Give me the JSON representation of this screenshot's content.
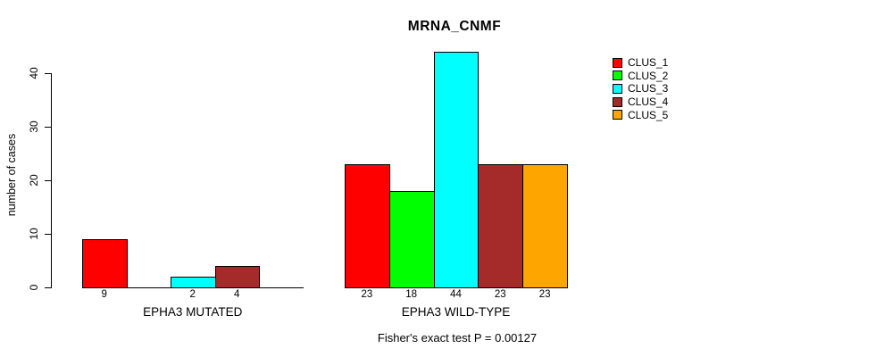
{
  "chart_data": {
    "type": "bar",
    "title": "MRNA_CNMF",
    "ylabel": "number of cases",
    "footer": "Fisher's exact test P = 0.00127",
    "ylim": [
      0,
      44
    ],
    "yticks": [
      0,
      10,
      20,
      30,
      40
    ],
    "grid": false,
    "legend_position": "top-right",
    "categories": [
      "EPHA3 MUTATED",
      "EPHA3 WILD-TYPE"
    ],
    "series": [
      {
        "name": "CLUS_1",
        "color": "#FF0000",
        "values": [
          9,
          23
        ]
      },
      {
        "name": "CLUS_2",
        "color": "#00FF00",
        "values": [
          0,
          18
        ]
      },
      {
        "name": "CLUS_3",
        "color": "#00FFFF",
        "values": [
          2,
          44
        ]
      },
      {
        "name": "CLUS_4",
        "color": "#A52A2A",
        "values": [
          4,
          23
        ]
      },
      {
        "name": "CLUS_5",
        "color": "#FFA500",
        "values": [
          0,
          23
        ]
      }
    ],
    "zero_value_labels_hidden": true
  }
}
